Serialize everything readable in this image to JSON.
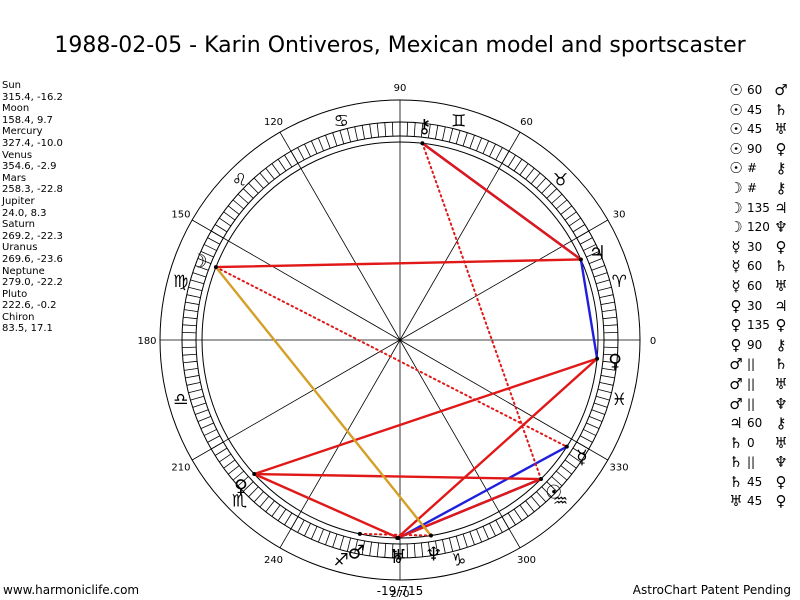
{
  "title": "1988-02-05 - Karin Ontiveros, Mexican model and sportscaster",
  "planets": [
    {
      "name": "Sun",
      "coords": "315.4, -16.2"
    },
    {
      "name": "Moon",
      "coords": "158.4, 9.7"
    },
    {
      "name": "Mercury",
      "coords": "327.4, -10.0"
    },
    {
      "name": "Venus",
      "coords": "354.6, -2.9"
    },
    {
      "name": "Mars",
      "coords": "258.3, -22.8"
    },
    {
      "name": "Jupiter",
      "coords": "24.0, 8.3"
    },
    {
      "name": "Saturn",
      "coords": "269.2, -22.3"
    },
    {
      "name": "Uranus",
      "coords": "269.6, -23.6"
    },
    {
      "name": "Neptune",
      "coords": "279.0, -22.2"
    },
    {
      "name": "Pluto",
      "coords": "222.6, -0.2"
    },
    {
      "name": "Chiron",
      "coords": "83.5, 17.1"
    }
  ],
  "aspects": [
    {
      "p1": "☉",
      "angle": "60",
      "p2": "♂"
    },
    {
      "p1": "☉",
      "angle": "45",
      "p2": "♄"
    },
    {
      "p1": "☉",
      "angle": "45",
      "p2": "♅"
    },
    {
      "p1": "☉",
      "angle": "90",
      "p2": "♀"
    },
    {
      "p1": "☉",
      "angle": "#",
      "p2": "⚷"
    },
    {
      "p1": "☽",
      "angle": "#",
      "p2": "⚷"
    },
    {
      "p1": "☽",
      "angle": "135",
      "p2": "♃"
    },
    {
      "p1": "☽",
      "angle": "120",
      "p2": "♆"
    },
    {
      "p1": "☿",
      "angle": "30",
      "p2": "♀"
    },
    {
      "p1": "☿",
      "angle": "60",
      "p2": "♄"
    },
    {
      "p1": "☿",
      "angle": "60",
      "p2": "♅"
    },
    {
      "p1": "♀",
      "angle": "30",
      "p2": "♃"
    },
    {
      "p1": "♀",
      "angle": "135",
      "p2": "♀"
    },
    {
      "p1": "♀",
      "angle": "90",
      "p2": "⚷"
    },
    {
      "p1": "♂",
      "angle": "||",
      "p2": "♄"
    },
    {
      "p1": "♂",
      "angle": "||",
      "p2": "♅"
    },
    {
      "p1": "♂",
      "angle": "||",
      "p2": "♆"
    },
    {
      "p1": "♃",
      "angle": "60",
      "p2": "⚷"
    },
    {
      "p1": "♄",
      "angle": "0",
      "p2": "♅"
    },
    {
      "p1": "♄",
      "angle": "||",
      "p2": "♆"
    },
    {
      "p1": "♄",
      "angle": "45",
      "p2": "♀"
    },
    {
      "p1": "♅",
      "angle": "45",
      "p2": "♀"
    }
  ],
  "wheel": {
    "degree_labels": [
      "0",
      "30",
      "60",
      "90",
      "120",
      "150",
      "180",
      "210",
      "240",
      "270",
      "300",
      "330"
    ],
    "sign_glyphs": [
      "♈",
      "♉",
      "♊",
      "♋",
      "♌",
      "♍",
      "♎",
      "♏",
      "♐",
      "♑",
      "♒",
      "♓"
    ],
    "center_label": "-19/715",
    "chart_planets": [
      {
        "glyph": "☉",
        "lon": 315.4
      },
      {
        "glyph": "☽",
        "lon": 158.4
      },
      {
        "glyph": "☿",
        "lon": 327.4
      },
      {
        "glyph": "♀",
        "lon": 354.6
      },
      {
        "glyph": "♂",
        "lon": 258.3
      },
      {
        "glyph": "♃",
        "lon": 24.0
      },
      {
        "glyph": "♄",
        "lon": 269.2
      },
      {
        "glyph": "♅",
        "lon": 269.6
      },
      {
        "glyph": "♆",
        "lon": 279.0
      },
      {
        "glyph": "♀",
        "lon": 222.6
      },
      {
        "glyph": "⚷",
        "lon": 83.5
      }
    ],
    "aspect_lines": [
      {
        "from": 83.5,
        "to": 24.0,
        "color": "#1f1fdd",
        "style": "solid"
      },
      {
        "from": 24.0,
        "to": 354.6,
        "color": "#1f1fdd",
        "style": "solid"
      },
      {
        "from": 315.4,
        "to": 269.2,
        "color": "#1f1fdd",
        "style": "solid"
      },
      {
        "from": 327.4,
        "to": 269.6,
        "color": "#1f1fdd",
        "style": "solid"
      },
      {
        "from": 83.5,
        "to": 24.0,
        "color": "#e01818",
        "style": "solid"
      },
      {
        "from": 158.4,
        "to": 24.0,
        "color": "#e01818",
        "style": "solid"
      },
      {
        "from": 222.6,
        "to": 354.6,
        "color": "#e01818",
        "style": "solid"
      },
      {
        "from": 222.6,
        "to": 315.4,
        "color": "#e01818",
        "style": "solid"
      },
      {
        "from": 222.6,
        "to": 269.6,
        "color": "#e01818",
        "style": "solid"
      },
      {
        "from": 269.2,
        "to": 315.4,
        "color": "#e01818",
        "style": "solid"
      },
      {
        "from": 354.6,
        "to": 269.2,
        "color": "#e01818",
        "style": "solid"
      },
      {
        "from": 83.5,
        "to": 315.4,
        "color": "#e01818",
        "style": "dotted"
      },
      {
        "from": 158.4,
        "to": 327.4,
        "color": "#e01818",
        "style": "dotted"
      },
      {
        "from": 258.3,
        "to": 279.0,
        "color": "#e01818",
        "style": "dotted"
      },
      {
        "from": 158.4,
        "to": 279.0,
        "color": "#d4a028",
        "style": "solid"
      }
    ]
  },
  "footer": {
    "left": "www.harmoniclife.com",
    "right": "AstroChart Patent Pending"
  }
}
